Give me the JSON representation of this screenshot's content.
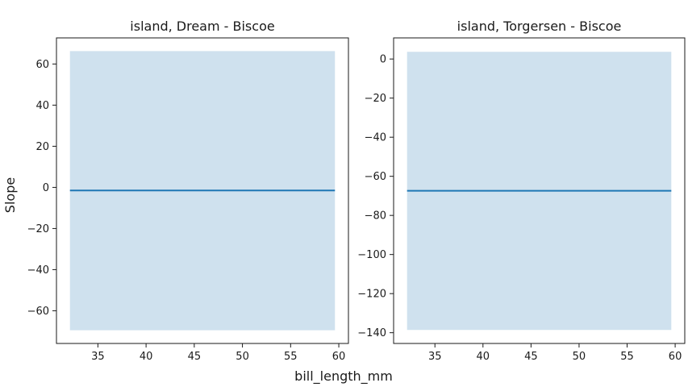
{
  "figure": {
    "xlabel": "bill_length_mm",
    "ylabel": "Slope"
  },
  "colors": {
    "line": "#1f77b4",
    "band": "#cfe1ee",
    "axes": "#1a1a1a",
    "background": "#ffffff"
  },
  "chart_data": [
    {
      "type": "line",
      "title": "island, Dream - Biscoe",
      "x": [
        32.1,
        59.6
      ],
      "y": [
        -1.5,
        -1.5
      ],
      "band_lower": [
        -69.5,
        -69.5
      ],
      "band_upper": [
        66.3,
        66.3
      ],
      "xlim": [
        30.7,
        61.0
      ],
      "ylim": [
        -75.9,
        72.7
      ],
      "xticks": [
        35,
        40,
        45,
        50,
        55,
        60
      ],
      "yticks": [
        -60,
        -40,
        -20,
        0,
        20,
        40,
        60
      ],
      "grid": false
    },
    {
      "type": "line",
      "title": "island, Torgersen - Biscoe",
      "x": [
        32.1,
        59.6
      ],
      "y": [
        -67.4,
        -67.4
      ],
      "band_lower": [
        -138.6,
        -138.6
      ],
      "band_upper": [
        3.7,
        3.7
      ],
      "xlim": [
        30.7,
        61.0
      ],
      "ylim": [
        -145.5,
        10.8
      ],
      "xticks": [
        35,
        40,
        45,
        50,
        55,
        60
      ],
      "yticks": [
        -140,
        -120,
        -100,
        -80,
        -60,
        -40,
        -20,
        0
      ],
      "grid": false
    }
  ]
}
